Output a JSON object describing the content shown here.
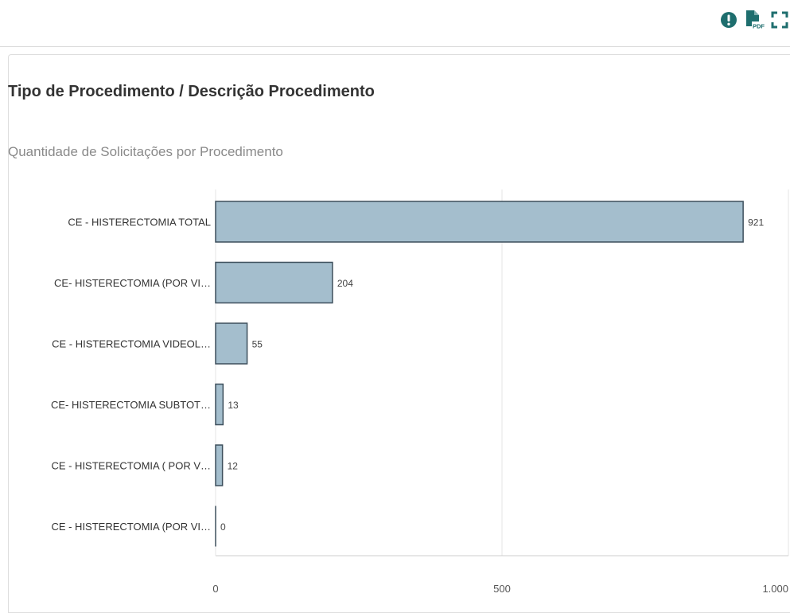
{
  "toolbar": {
    "info_icon": "exclamation-circle-icon",
    "pdf_icon": "pdf-file-icon",
    "pdf_badge": "PDF",
    "fullscreen_icon": "fullscreen-icon",
    "accent_color": "#1e6e6e"
  },
  "chart": {
    "title": "Tipo de Procedimento / Descrição Procedimento",
    "subtitle": "Quantidade de Solicitações por Procedimento"
  },
  "chart_data": {
    "type": "bar",
    "orientation": "horizontal",
    "title": "Tipo de Procedimento / Descrição Procedimento",
    "subtitle": "Quantidade de Solicitações por Procedimento",
    "categories": [
      "CE - HISTERECTOMIA TOTAL",
      "CE- HISTERECTOMIA (POR VI…",
      "CE - HISTERECTOMIA VIDEOL…",
      "CE- HISTERECTOMIA SUBTOT…",
      "CE - HISTERECTOMIA ( POR V…",
      "CE - HISTERECTOMIA (POR VI…"
    ],
    "values": [
      921,
      204,
      55,
      13,
      12,
      0
    ],
    "xlim": [
      0,
      1000
    ],
    "x_ticks": [
      0,
      500,
      1000
    ],
    "x_tick_labels": [
      "0",
      "500",
      "1.000"
    ],
    "grid": true,
    "bar_color": "#a4becd",
    "bar_stroke": "#3d4f5c",
    "data_labels": true
  }
}
